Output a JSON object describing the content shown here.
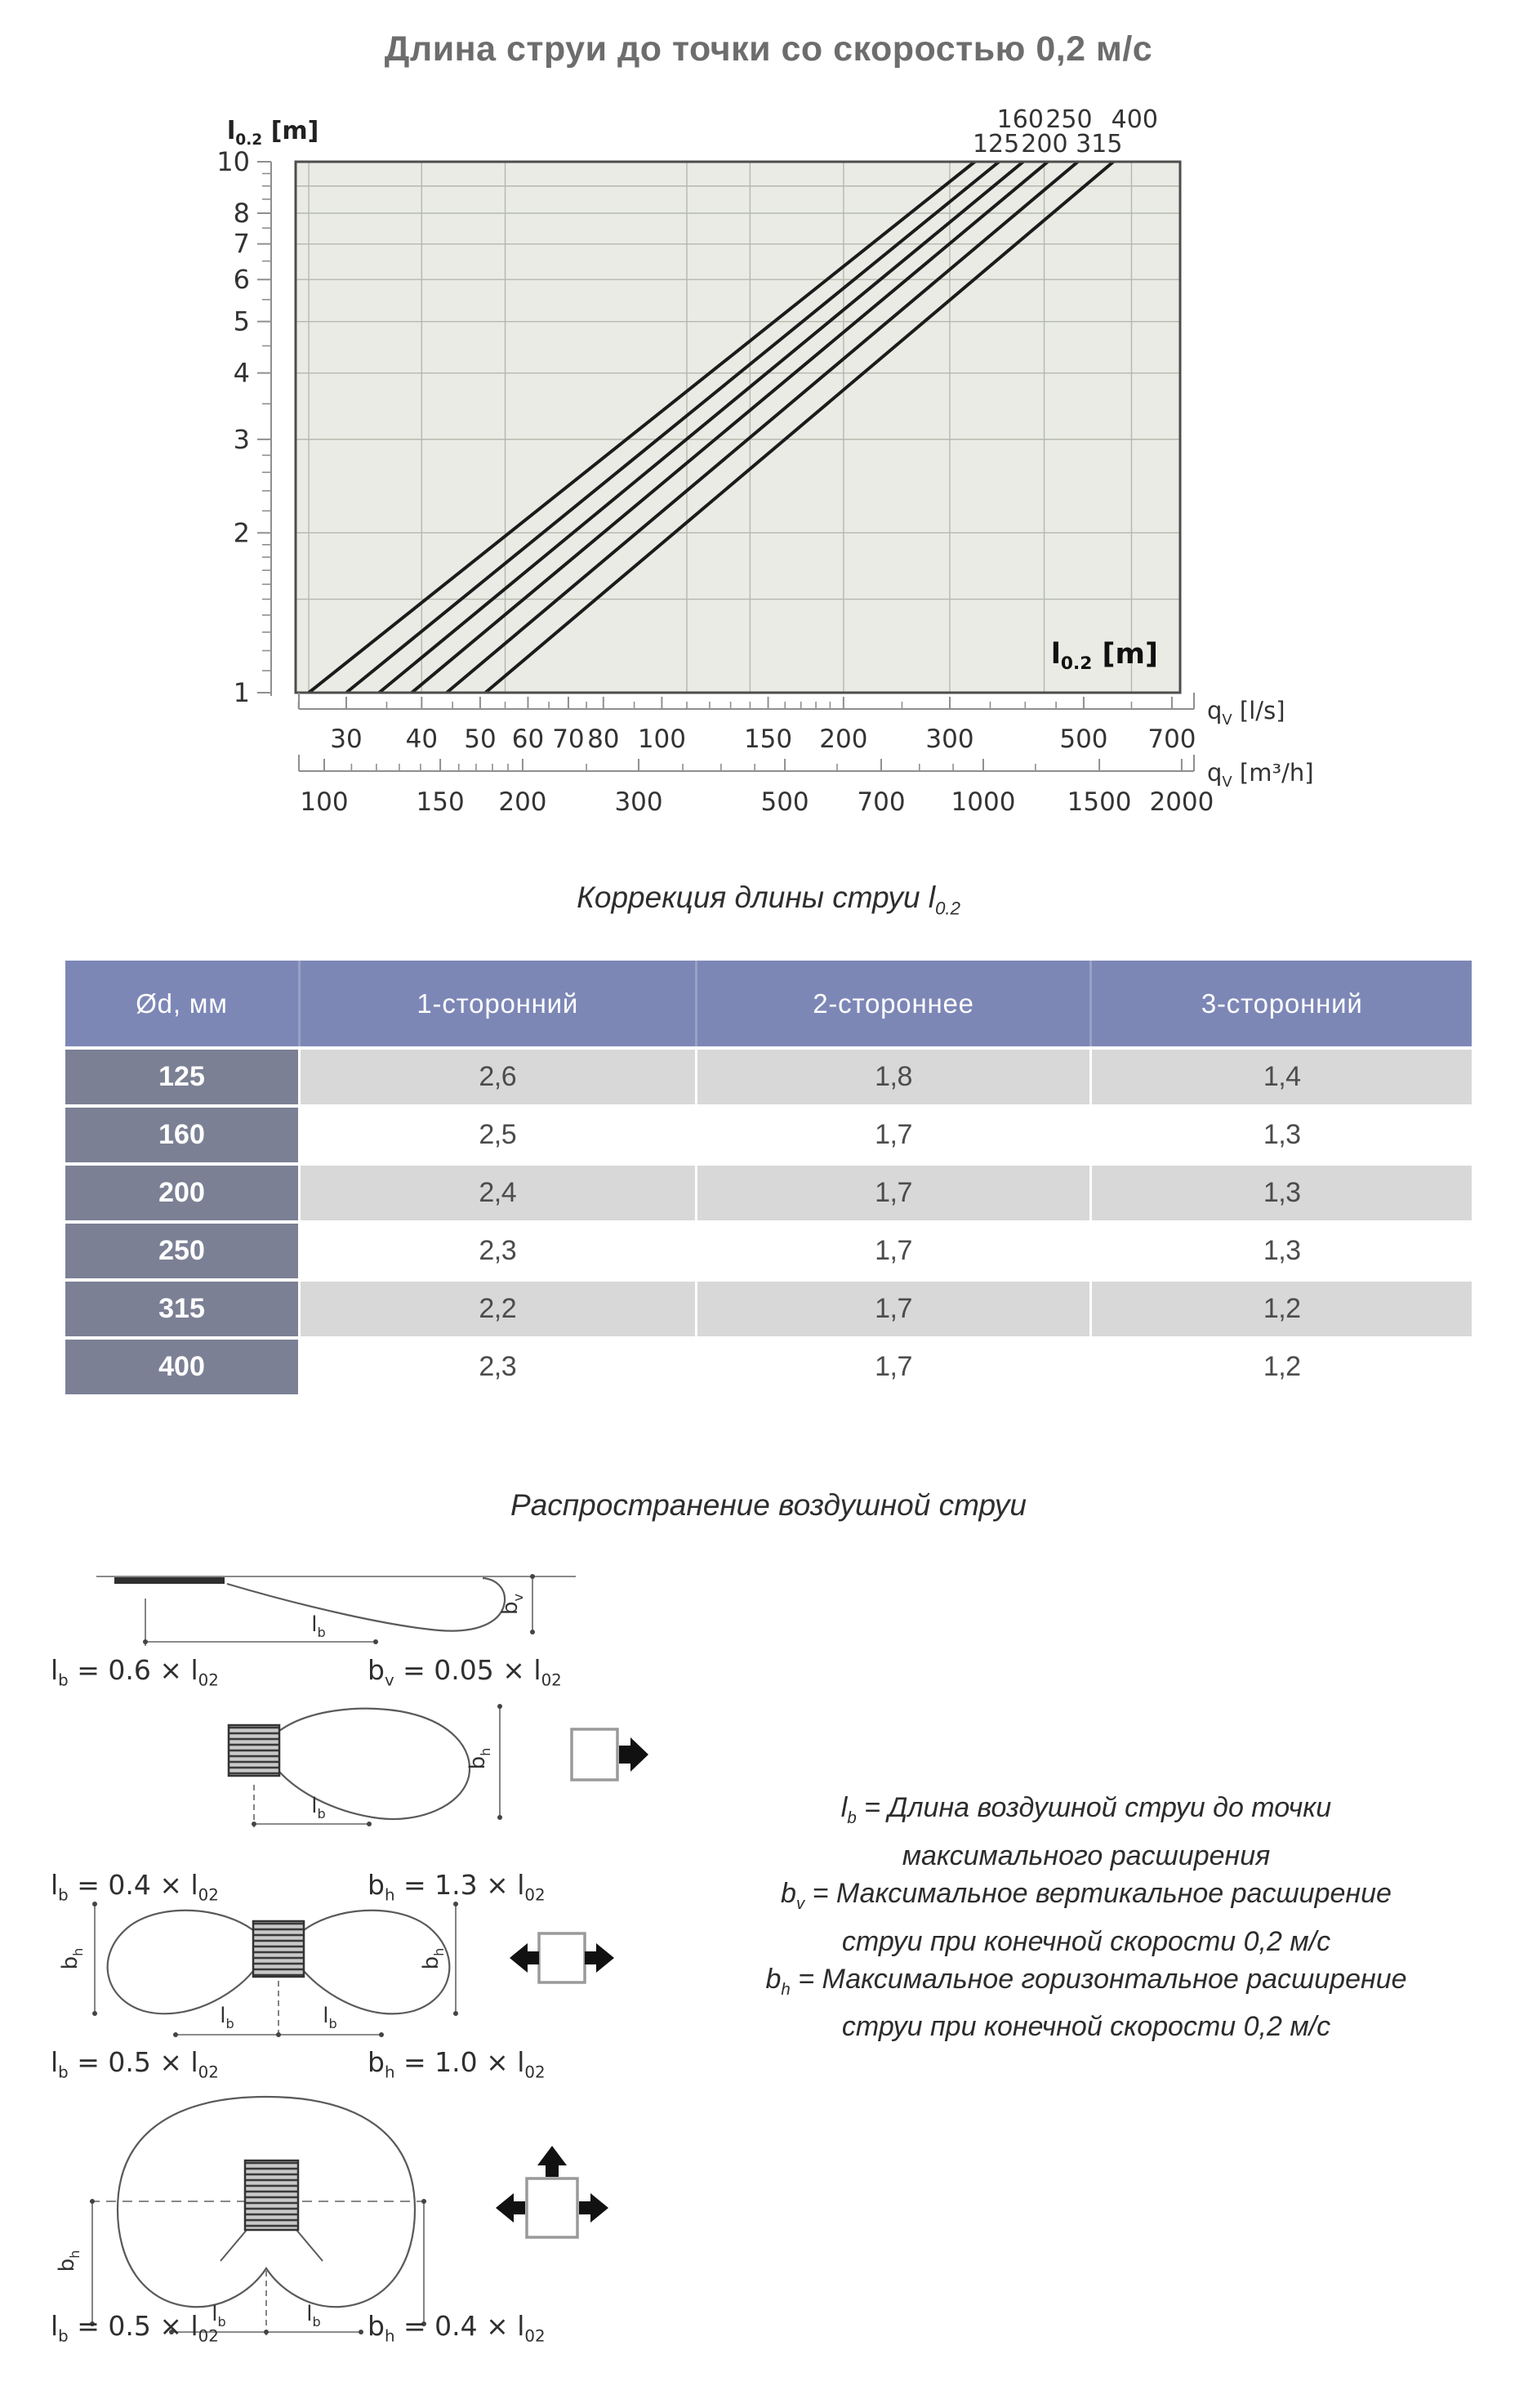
{
  "page": {
    "title": "Длина струи до точки со скоростью 0,2 м/с"
  },
  "chart_data": {
    "type": "line",
    "title": "Длина струи до точки со скоростью 0,2 м/с",
    "scale": "log-log",
    "colors": {
      "plot_bg": "#e9ebe4",
      "grid": "#b4b9ae",
      "line": "#1b1b1b",
      "border": "#4d4d4d",
      "ruler": "#8f8f8f",
      "text": "#333333"
    },
    "y_axis": {
      "label": "l_0.2 [m]",
      "min": 1,
      "max": 10,
      "labeled_ticks": [
        10,
        8,
        7,
        6,
        5,
        4,
        3,
        2,
        1
      ],
      "minor_ticks": [
        1.1,
        1.2,
        1.3,
        1.4,
        1.5,
        1.6,
        1.7,
        1.8,
        1.9,
        2.2,
        2.4,
        2.6,
        2.8,
        3.5,
        4.5,
        5.5,
        6.5,
        7.5,
        8.5,
        9,
        9.5
      ]
    },
    "x_axis_primary": {
      "label": "q_V [l/s]",
      "labeled_ticks": [
        30,
        40,
        50,
        60,
        70,
        80,
        100,
        150,
        200,
        300,
        500,
        700
      ],
      "minor_ticks": [
        25,
        35,
        45,
        55,
        65,
        75,
        90,
        110,
        120,
        130,
        140,
        160,
        170,
        180,
        190,
        250,
        350,
        400,
        450,
        600
      ]
    },
    "x_axis_secondary": {
      "label": "q_V [m³/h]",
      "labeled_ticks": [
        100,
        150,
        200,
        300,
        500,
        700,
        1000,
        1500,
        2000
      ],
      "minor_ticks": [
        110,
        120,
        130,
        140,
        160,
        170,
        180,
        190,
        250,
        350,
        400,
        450,
        600,
        800,
        900,
        1200
      ]
    },
    "grid": {
      "x_gridlines_ls": [
        26,
        40,
        55,
        110,
        140,
        200,
        300,
        430,
        600
      ],
      "y_gridlines_m": [
        1.5,
        2,
        3,
        4,
        5,
        6,
        7,
        8,
        9
      ]
    },
    "corner_label": "l_0.2 [m]",
    "series": [
      {
        "name": "125",
        "points": [
          {
            "q_ls": 26,
            "l02_m": 1
          },
          {
            "q_ls": 330,
            "l02_m": 10
          }
        ]
      },
      {
        "name": "160",
        "points": [
          {
            "q_ls": 30,
            "l02_m": 1
          },
          {
            "q_ls": 362,
            "l02_m": 10
          }
        ]
      },
      {
        "name": "200",
        "points": [
          {
            "q_ls": 34,
            "l02_m": 1
          },
          {
            "q_ls": 397,
            "l02_m": 10
          }
        ]
      },
      {
        "name": "250",
        "points": [
          {
            "q_ls": 38.5,
            "l02_m": 1
          },
          {
            "q_ls": 436,
            "l02_m": 10
          }
        ]
      },
      {
        "name": "315",
        "points": [
          {
            "q_ls": 44,
            "l02_m": 1
          },
          {
            "q_ls": 489,
            "l02_m": 10
          }
        ]
      },
      {
        "name": "400",
        "points": [
          {
            "q_ls": 51,
            "l02_m": 1
          },
          {
            "q_ls": 560,
            "l02_m": 10
          }
        ]
      }
    ]
  },
  "table": {
    "caption": "Коррекция длины струи  l_0.2",
    "headers": [
      "Ød, мм",
      "1-сторонний",
      "2-стороннее",
      "3-сторонний"
    ],
    "rows": [
      {
        "d": "125",
        "values": [
          "2,6",
          "1,8",
          "1,4"
        ]
      },
      {
        "d": "160",
        "values": [
          "2,5",
          "1,7",
          "1,3"
        ]
      },
      {
        "d": "200",
        "values": [
          "2,4",
          "1,7",
          "1,3"
        ]
      },
      {
        "d": "250",
        "values": [
          "2,3",
          "1,7",
          "1,3"
        ]
      },
      {
        "d": "315",
        "values": [
          "2,2",
          "1,7",
          "1,2"
        ]
      },
      {
        "d": "400",
        "values": [
          "2,3",
          "1,7",
          "1,2"
        ]
      }
    ],
    "colors": {
      "header_bg": "#7d87b6",
      "dia_col_bg": "#7b8094",
      "row_alt_bg": "#d8d8d8",
      "row_bg": "#ffffff"
    }
  },
  "jet_section": {
    "caption": "Распространение воздушной струи",
    "diagrams": [
      {
        "id": "ceiling-jet",
        "dims": [
          "l_b",
          "b_v"
        ],
        "formula_left": "l_b = 0.6 × l_02",
        "formula_right": "b_v = 0.05 × l_02"
      },
      {
        "id": "one-way-throw",
        "dims": [
          "l_b",
          "b_h"
        ],
        "formula_left": "l_b = 0.4 × l_02",
        "formula_right": "b_h = 1.3 × l_02"
      },
      {
        "id": "two-way-throw",
        "dims": [
          "l_b",
          "l_b",
          "b_h",
          "b_h"
        ],
        "formula_left": "l_b = 0.5 × l_02",
        "formula_right": "b_h = 1.0 × l_02"
      },
      {
        "id": "three-way-throw",
        "dims": [
          "l_b",
          "l_b",
          "b_h"
        ],
        "formula_left": "l_b = 0.5 × l_02",
        "formula_right": "b_h = 0.4 × l_02"
      }
    ],
    "legend_lines": [
      "l_b = Длина воздушной струи до точки",
      "максимального расширения",
      "b_v = Максимальное вертикальное расширение",
      "струи при конечной скорости 0,2 м/с",
      "b_h = Максимальное горизонтальное расширение",
      "струи при конечной скорости 0,2 м/с"
    ]
  }
}
